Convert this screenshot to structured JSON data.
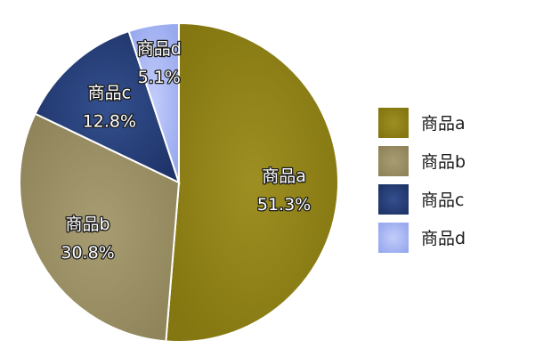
{
  "chart_data": {
    "type": "pie",
    "categories": [
      "商品a",
      "商品b",
      "商品c",
      "商品d"
    ],
    "values": [
      51.3,
      30.8,
      12.8,
      5.1
    ],
    "data_labels": [
      "51.3%",
      "30.8%",
      "12.8%",
      "5.1%"
    ],
    "colors": [
      "#8b7d17",
      "#9b9066",
      "#283f7a",
      "#a9b8f5"
    ],
    "start_angle": "12 o'clock",
    "direction": "clockwise",
    "legend": {
      "position": "right",
      "entries": [
        "商品a",
        "商品b",
        "商品c",
        "商品d"
      ]
    }
  }
}
